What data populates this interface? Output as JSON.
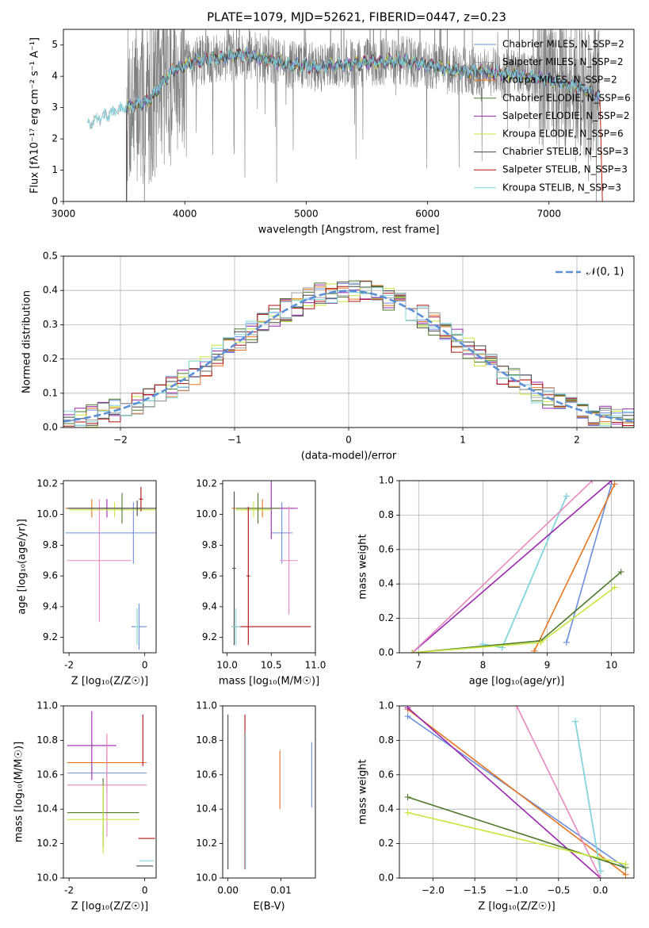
{
  "colors": {
    "c_miles": "#6a8ee0",
    "s_miles": "#9aa0a6",
    "k_miles": "#e8741e",
    "c_elodie": "#4c7a2a",
    "s_elodie": "#9b27af",
    "k_elodie": "#c8e63c",
    "c_stelib": "#444444",
    "s_stelib": "#b01010",
    "k_stelib": "#7fd8e0",
    "pink": "#e889c0",
    "gauss": "#5b8fd6"
  },
  "chart_data": [
    {
      "id": "spectrum",
      "type": "line",
      "title": "PLATE=1079, MJD=52621, FIBERID=0447, z=0.23",
      "xlabel": "wavelength [Angstrom, rest frame]",
      "ylabel": "Flux [fλ10⁻¹⁷ erg cm⁻² s⁻¹ A⁻¹]",
      "xlim": [
        3000,
        7700
      ],
      "ylim": [
        0,
        5.5
      ],
      "xticks": [
        "3000",
        "4000",
        "5000",
        "6000",
        "7000"
      ],
      "yticks": [
        "0",
        "1",
        "2",
        "3",
        "4",
        "5"
      ],
      "legend_position": "right",
      "legend": [
        {
          "label": "Chabrier MILES, N_SSP=2",
          "color": "c_miles"
        },
        {
          "label": "Salpeter MILES, N_SSP=2",
          "color": "s_miles"
        },
        {
          "label": "Kroupa MILES, N_SSP=2",
          "color": "k_miles"
        },
        {
          "label": "Chabrier ELODIE, N_SSP=6",
          "color": "c_elodie"
        },
        {
          "label": "Salpeter ELODIE, N_SSP=2",
          "color": "s_elodie"
        },
        {
          "label": "Kroupa ELODIE, N_SSP=6",
          "color": "k_elodie"
        },
        {
          "label": "Chabrier STELIB, N_SSP=3",
          "color": "c_stelib"
        },
        {
          "label": "Salpeter STELIB, N_SSP=3",
          "color": "s_stelib"
        },
        {
          "label": "Kroupa STELIB, N_SSP=3",
          "color": "k_stelib"
        }
      ],
      "data_series": {
        "name": "data",
        "color": "#808080",
        "x_range": [
          3520,
          7420
        ],
        "median_flux": 3.9
      },
      "model_anchors": {
        "x": [
          3200,
          3500,
          3700,
          3900,
          4100,
          4300,
          4500,
          4800,
          5100,
          5400,
          5800,
          6200,
          6600,
          7000,
          7300,
          7420
        ],
        "y": [
          2.5,
          3.0,
          3.2,
          4.2,
          4.5,
          4.6,
          4.7,
          4.4,
          4.3,
          4.4,
          4.5,
          4.2,
          4.1,
          3.9,
          3.6,
          3.3
        ]
      }
    },
    {
      "id": "residuals",
      "type": "histogram",
      "xlabel": "(data-model)/error",
      "ylabel": "Normed distribution",
      "xlim": [
        -2.5,
        2.5
      ],
      "ylim": [
        0,
        0.5
      ],
      "xticks": [
        "−2",
        "−1",
        "0",
        "1",
        "2"
      ],
      "yticks": [
        "0.0",
        "0.1",
        "0.2",
        "0.3",
        "0.4",
        "0.5"
      ],
      "grid": true,
      "legend": [
        {
          "label": "𝒩(0, 1)",
          "color": "gauss",
          "style": "dashed"
        }
      ],
      "legend_position": "top-right",
      "bin_width": 0.1
    },
    {
      "id": "age_vs_Z",
      "type": "errorbar",
      "xlabel": "Z [log₁₀(Z/Z☉)]",
      "ylabel": "age  [log₁₀(age/yr)]",
      "xlim": [
        -2.15,
        0.3
      ],
      "ylim": [
        9.1,
        10.22
      ],
      "xticks": [
        -2,
        0
      ],
      "yticks": [
        9.2,
        9.4,
        9.6,
        9.8,
        10.0,
        10.2
      ],
      "points": [
        {
          "color": "c_miles",
          "x": -0.3,
          "y": 9.88,
          "xerr": 1.8,
          "yerr": 0.2
        },
        {
          "color": "c_miles",
          "x": -0.15,
          "y": 9.27,
          "xerr": 0.2,
          "yerr": 0.15
        },
        {
          "color": "k_miles",
          "x": -1.4,
          "y": 10.04,
          "xerr": 0.7,
          "yerr": 0.06
        },
        {
          "color": "s_elodie",
          "x": -1.0,
          "y": 10.04,
          "xerr": 1.0,
          "yerr": 0.06
        },
        {
          "color": "k_elodie",
          "x": -0.8,
          "y": 10.03,
          "xerr": 1.2,
          "yerr": 0.05
        },
        {
          "color": "c_elodie",
          "x": -0.6,
          "y": 10.04,
          "xerr": 1.4,
          "yerr": 0.1
        },
        {
          "color": "s_stelib",
          "x": -0.1,
          "y": 10.1,
          "xerr": 0.05,
          "yerr": 0.08
        },
        {
          "color": "pink",
          "x": -1.2,
          "y": 9.7,
          "xerr": 0.85,
          "yerr": 0.4
        },
        {
          "color": "c_stelib",
          "x": -0.2,
          "y": 10.04,
          "xerr": 1.85,
          "yerr": 0.05
        },
        {
          "color": "k_stelib",
          "x": -0.2,
          "y": 9.27,
          "xerr": 0.05,
          "yerr": 0.12
        }
      ]
    },
    {
      "id": "age_vs_mass",
      "type": "errorbar",
      "xlabel": "mass [log₁₀(M/M☉)]",
      "ylabel": "",
      "xlim": [
        9.95,
        11.0
      ],
      "ylim": [
        9.1,
        10.22
      ],
      "xticks": [
        10.0,
        10.5,
        11.0
      ],
      "yticks": [
        9.2,
        9.4,
        9.6,
        9.8,
        10.0,
        10.2
      ],
      "points": [
        {
          "color": "c_miles",
          "x": 10.62,
          "y": 9.88,
          "xerr": 0.12,
          "yerr": 0.2
        },
        {
          "color": "k_miles",
          "x": 10.4,
          "y": 10.04,
          "xerr": 0.35,
          "yerr": 0.06
        },
        {
          "color": "s_elodie",
          "x": 10.5,
          "y": 10.04,
          "xerr": 0.3,
          "yerr": 0.2
        },
        {
          "color": "k_elodie",
          "x": 10.3,
          "y": 10.03,
          "xerr": 0.2,
          "yerr": 0.05
        },
        {
          "color": "c_elodie",
          "x": 10.35,
          "y": 10.04,
          "xerr": 0.25,
          "yerr": 0.1
        },
        {
          "color": "s_stelib",
          "x": 10.24,
          "y": 9.6,
          "xerr": 0.02,
          "yerr": 0.45
        },
        {
          "color": "pink",
          "x": 10.7,
          "y": 9.7,
          "xerr": 0.1,
          "yerr": 0.35
        },
        {
          "color": "c_stelib",
          "x": 10.08,
          "y": 9.65,
          "xerr": 0.02,
          "yerr": 0.5
        },
        {
          "color": "s_stelib",
          "x": 10.5,
          "y": 9.27,
          "xerr": 0.45,
          "yerr": 0.0
        },
        {
          "color": "k_stelib",
          "x": 10.1,
          "y": 9.27,
          "xerr": 0.05,
          "yerr": 0.12
        }
      ]
    },
    {
      "id": "weight_vs_age",
      "type": "line",
      "xlabel": "age  [log₁₀(age/yr)]",
      "ylabel": "mass weight",
      "xlim": [
        6.7,
        10.35
      ],
      "ylim": [
        0,
        1.0
      ],
      "xticks": [
        7,
        8,
        9,
        10
      ],
      "yticks": [
        0.0,
        0.2,
        0.4,
        0.6,
        0.8,
        1.0
      ],
      "grid": true,
      "series": [
        {
          "color": "s_miles",
          "x": [
            8.0,
            8.3,
            9.3
          ],
          "y": [
            0.05,
            0.03,
            0.91
          ]
        },
        {
          "color": "k_stelib",
          "x": [
            8.0,
            8.3,
            9.3
          ],
          "y": [
            0.05,
            0.03,
            0.91
          ]
        },
        {
          "color": "c_miles",
          "x": [
            9.3,
            10.0
          ],
          "y": [
            0.06,
            0.98
          ]
        },
        {
          "color": "k_miles",
          "x": [
            8.8,
            10.05
          ],
          "y": [
            0.01,
            0.98
          ]
        },
        {
          "color": "s_elodie",
          "x": [
            6.9,
            10.0
          ],
          "y": [
            0.0,
            1.0
          ]
        },
        {
          "color": "pink",
          "x": [
            6.9,
            9.7
          ],
          "y": [
            0.0,
            1.0
          ]
        },
        {
          "color": "c_elodie",
          "x": [
            6.9,
            8.9,
            10.15
          ],
          "y": [
            0.0,
            0.07,
            0.47
          ]
        },
        {
          "color": "k_elodie",
          "x": [
            6.9,
            8.9,
            10.05
          ],
          "y": [
            0.0,
            0.06,
            0.38
          ]
        }
      ]
    },
    {
      "id": "mass_vs_Z",
      "type": "errorbar",
      "xlabel": "Z [log₁₀(Z/Z☉)]",
      "ylabel": "mass [log₁₀(M/M☉)]",
      "xlim": [
        -2.15,
        0.3
      ],
      "ylim": [
        10.0,
        11.0
      ],
      "xticks": [
        -2,
        0
      ],
      "yticks": [
        10.0,
        10.2,
        10.4,
        10.6,
        10.8,
        11.0
      ],
      "points": [
        {
          "color": "c_miles",
          "x": -1.0,
          "y": 10.61,
          "xerr": 1.05,
          "yerr": 0.12
        },
        {
          "color": "k_miles",
          "x": -1.0,
          "y": 10.67,
          "xerr": 1.05,
          "yerr": 0.15
        },
        {
          "color": "s_elodie",
          "x": -1.4,
          "y": 10.77,
          "xerr": 0.65,
          "yerr": 0.2
        },
        {
          "color": "pink",
          "x": -1.0,
          "y": 10.54,
          "xerr": 1.05,
          "yerr": 0.3
        },
        {
          "color": "c_elodie",
          "x": -1.1,
          "y": 10.38,
          "xerr": 0.95,
          "yerr": 0.2
        },
        {
          "color": "k_elodie",
          "x": -1.1,
          "y": 10.34,
          "xerr": 0.95,
          "yerr": 0.2
        },
        {
          "color": "s_stelib",
          "x": 0.05,
          "y": 10.23,
          "xerr": 0.22,
          "yerr": 0.0
        },
        {
          "color": "c_stelib",
          "x": 0.0,
          "y": 10.07,
          "xerr": 0.22,
          "yerr": 0.0
        },
        {
          "color": "k_stelib",
          "x": 0.05,
          "y": 10.1,
          "xerr": 0.2,
          "yerr": 0.0
        },
        {
          "color": "s_stelib",
          "x": -0.05,
          "y": 10.8,
          "xerr": 0.0,
          "yerr": 0.15
        }
      ]
    },
    {
      "id": "mass_vs_ebv",
      "type": "errorbar",
      "xlabel": "E(B-V)",
      "ylabel": "",
      "xlim": [
        -0.001,
        0.0165
      ],
      "ylim": [
        10.0,
        11.0
      ],
      "xticks": [
        "0.00",
        "0.01"
      ],
      "yticks": [
        10.0,
        10.2,
        10.4,
        10.6,
        10.8,
        11.0
      ],
      "points": [
        {
          "color": "c_stelib",
          "x": 0.0,
          "y": 10.5,
          "yerr": 0.45
        },
        {
          "color": "s_stelib",
          "x": 0.0032,
          "y": 10.5,
          "yerr": 0.45
        },
        {
          "color": "k_stelib",
          "x": 0.0033,
          "y": 10.45,
          "yerr": 0.4
        },
        {
          "color": "k_miles",
          "x": 0.0098,
          "y": 10.57,
          "yerr": 0.17
        },
        {
          "color": "c_miles",
          "x": 0.0158,
          "y": 10.6,
          "yerr": 0.19
        }
      ]
    },
    {
      "id": "weight_vs_Z",
      "type": "line",
      "xlabel": "Z [log₁₀(Z/Z☉)]",
      "ylabel": "mass weight",
      "xlim": [
        -2.4,
        0.4
      ],
      "ylim": [
        0,
        1.0
      ],
      "xticks": [
        "−2.0",
        "−1.5",
        "−1.0",
        "−0.5",
        "0.0"
      ],
      "yticks": [
        0.0,
        0.2,
        0.4,
        0.6,
        0.8,
        1.0
      ],
      "grid": true,
      "series": [
        {
          "color": "c_miles",
          "x": [
            -2.3,
            0.3
          ],
          "y": [
            0.94,
            0.06
          ]
        },
        {
          "color": "k_miles",
          "x": [
            -2.3,
            0.3
          ],
          "y": [
            0.98,
            0.02
          ]
        },
        {
          "color": "s_elodie",
          "x": [
            -2.3,
            0.0
          ],
          "y": [
            0.99,
            0.0
          ]
        },
        {
          "color": "pink",
          "x": [
            -1.0,
            0.0
          ],
          "y": [
            1.0,
            0.0
          ]
        },
        {
          "color": "s_miles",
          "x": [
            -0.3,
            0.0
          ],
          "y": [
            0.91,
            0.04
          ]
        },
        {
          "color": "k_stelib",
          "x": [
            -0.3,
            0.0
          ],
          "y": [
            0.91,
            0.04
          ]
        },
        {
          "color": "c_elodie",
          "x": [
            -2.3,
            0.3
          ],
          "y": [
            0.47,
            0.06
          ]
        },
        {
          "color": "k_elodie",
          "x": [
            -2.3,
            0.3
          ],
          "y": [
            0.38,
            0.08
          ]
        }
      ]
    }
  ]
}
